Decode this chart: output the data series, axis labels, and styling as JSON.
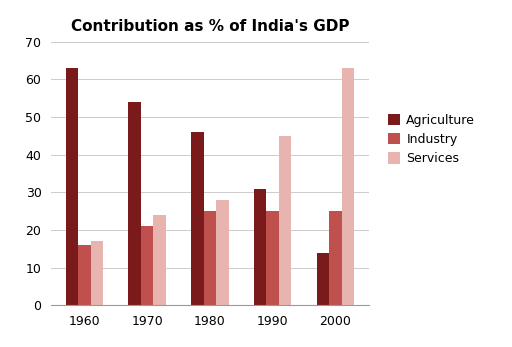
{
  "title": "Contribution as % of India's GDP",
  "years": [
    "1960",
    "1970",
    "1980",
    "1990",
    "2000"
  ],
  "series": {
    "Agriculture": [
      63,
      54,
      46,
      31,
      14
    ],
    "Industry": [
      16,
      21,
      25,
      25,
      25
    ],
    "Services": [
      17,
      24,
      28,
      45,
      63
    ]
  },
  "colors": {
    "Agriculture": "#7B1A1A",
    "Industry": "#C0504D",
    "Services": "#E8B4B0"
  },
  "ylim": [
    0,
    70
  ],
  "yticks": [
    0,
    10,
    20,
    30,
    40,
    50,
    60,
    70
  ],
  "bar_width": 0.2,
  "legend_labels": [
    "Agriculture",
    "Industry",
    "Services"
  ],
  "background_color": "#ffffff",
  "title_fontsize": 11,
  "tick_fontsize": 9
}
